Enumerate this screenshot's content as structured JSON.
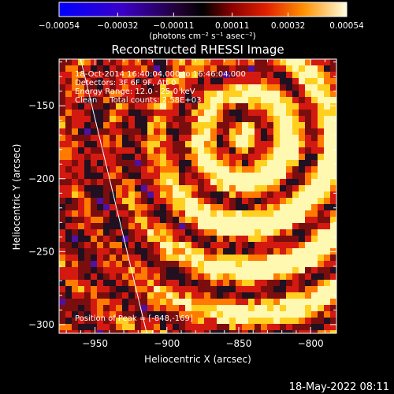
{
  "colorbar": {
    "tick_labels": [
      "−0.00054",
      "−0.00032",
      "−0.00011",
      "0.00011",
      "0.00032",
      "0.00054"
    ],
    "tick_values": [
      -0.00054,
      -0.00032,
      -0.00011,
      0.00011,
      0.00032,
      0.00054
    ],
    "range": [
      -0.00054,
      0.00054
    ],
    "unit_label": "(photons cm⁻² s⁻¹ asec⁻²)"
  },
  "chart_data": {
    "type": "heatmap",
    "title": "Reconstructed RHESSI Image",
    "xlabel": "Heliocentric X (arcsec)",
    "ylabel": "Heliocentric Y (arcsec)",
    "xlim": [
      -975,
      -782
    ],
    "ylim": [
      -306,
      -118
    ],
    "x_ticks": [
      -950,
      -900,
      -850,
      -800
    ],
    "x_tick_labels": [
      "−950",
      "−900",
      "−850",
      "−800"
    ],
    "y_ticks": [
      -150,
      -200,
      -250,
      -300
    ],
    "y_tick_labels": [
      "−150",
      "−200",
      "−250",
      "−300"
    ],
    "limb_line": [
      [
        -960,
        -118
      ],
      [
        -914,
        -306
      ]
    ],
    "annotations": [
      "18-Oct-2014 16:40:04.000 to 16:46:04.000",
      "Detectors: 3F 6F 9F, Att 0",
      "Energy Range: 12.0 - 25.0 keV",
      "Clean     Total counts: 2.58E+03"
    ],
    "peak_label": "Position of Peak = [-848,-169]",
    "peak": [
      -848,
      -169
    ],
    "colormap": [
      "#1010ff",
      "#5010a0",
      "#201020",
      "#7a0e0e",
      "#d41a10",
      "#ff7a00",
      "#ffd020",
      "#fff8b0"
    ]
  },
  "footer": {
    "timestamp": "18-May-2022 08:11"
  }
}
